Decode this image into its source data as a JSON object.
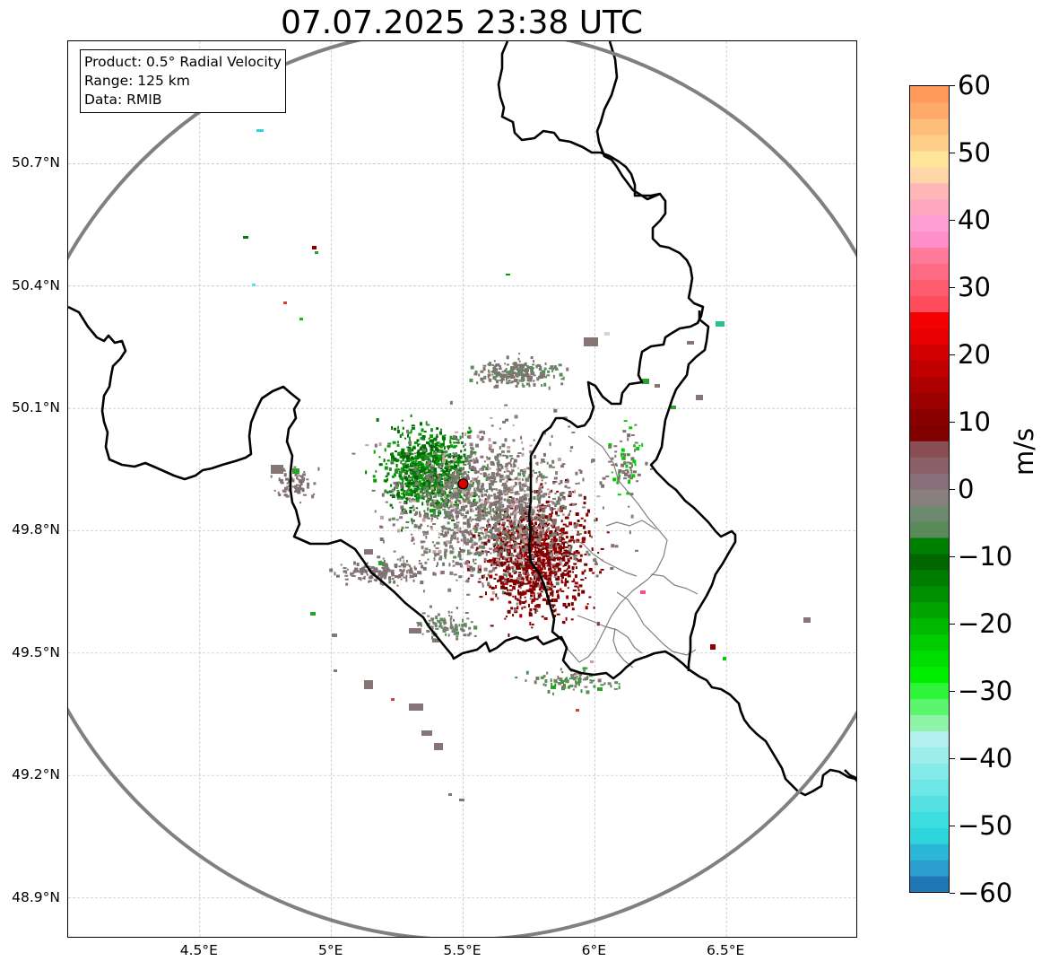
{
  "title": "07.07.2025 23:38 UTC",
  "info": {
    "product": "Product: 0.5° Radial Velocity",
    "range": "Range: 125 km",
    "data": "Data: RMIB"
  },
  "map": {
    "lon_range": [
      4.0,
      7.0
    ],
    "lat_range": [
      48.8,
      51.0
    ],
    "radar_site": {
      "lon": 5.5,
      "lat": 49.915,
      "color": "#dd0000"
    },
    "range_ring_color": "#808080",
    "border_color": "#000000",
    "admin_border_color": "#808080",
    "grid": true,
    "x_ticks": [
      4.5,
      5.0,
      5.5,
      6.0,
      6.5
    ],
    "x_tick_labels": [
      "4.5°E",
      "5°E",
      "5.5°E",
      "6°E",
      "6.5°E"
    ],
    "y_ticks": [
      50.7,
      50.4,
      50.1,
      49.8,
      49.5,
      49.2,
      48.9
    ],
    "y_tick_labels": [
      "50.7°N",
      "50.4°N",
      "50.1°N",
      "49.8°N",
      "49.5°N",
      "49.2°N",
      "48.9°N"
    ]
  },
  "colorbar": {
    "label": "m/s",
    "vmin": -60,
    "vmax": 60,
    "ticks": [
      60,
      50,
      40,
      30,
      20,
      10,
      0,
      -10,
      -20,
      -30,
      -40,
      -50,
      -60
    ],
    "tick_labels": [
      "60",
      "50",
      "40",
      "30",
      "20",
      "10",
      "0",
      "−10",
      "−20",
      "−30",
      "−40",
      "−50",
      "−60"
    ],
    "colors_bottom_to_top": [
      "#1f77b4",
      "#2a9fcf",
      "#2ab8d6",
      "#2ed6dc",
      "#3edde0",
      "#56e2e2",
      "#6ee6e6",
      "#85eaea",
      "#9eeded",
      "#b5f0f0",
      "#8ef5a8",
      "#5cf56e",
      "#2ef53a",
      "#00ee00",
      "#00dd00",
      "#00cc00",
      "#00b800",
      "#00a400",
      "#008f00",
      "#007c00",
      "#006700",
      "#008000",
      "#5a8a5a",
      "#6e8a6e",
      "#8a7f7f",
      "#8a6e7a",
      "#8a5f66",
      "#8a4e52",
      "#800000",
      "#8a0000",
      "#9c0000",
      "#ae0000",
      "#c00000",
      "#d20000",
      "#e60000",
      "#f50000",
      "#ff4d5e",
      "#ff5c70",
      "#ff6a84",
      "#ff7a98",
      "#ff8fc8",
      "#ff9ed2",
      "#ffa8c0",
      "#ffb6b6",
      "#ffd6a8",
      "#ffe49a",
      "#ffcf8a",
      "#ffbd7a",
      "#ffaa6a",
      "#ff9a5a"
    ]
  }
}
